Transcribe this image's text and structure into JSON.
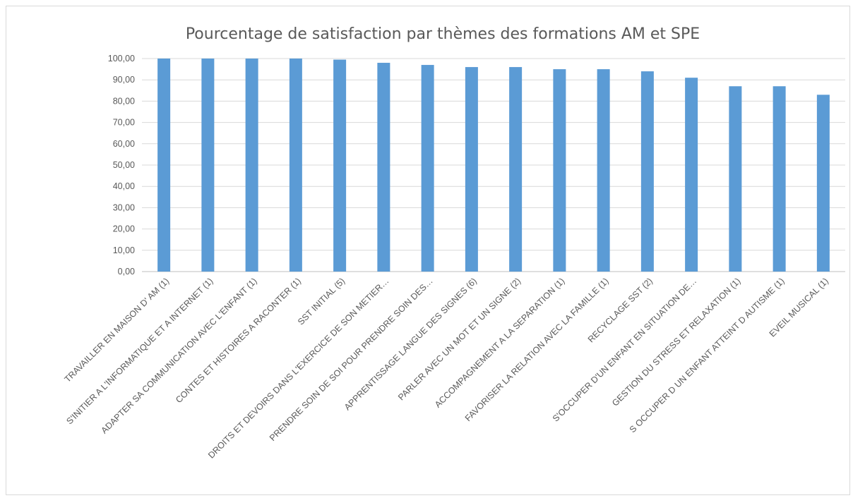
{
  "chart_data": {
    "type": "bar",
    "title": "Pourcentage de satisfaction  par thèmes des formations AM et SPE",
    "xlabel": "",
    "ylabel": "",
    "ylim": [
      0,
      100
    ],
    "ytick_step": 10,
    "ytick_labels": [
      "0,00",
      "10,00",
      "20,00",
      "30,00",
      "40,00",
      "50,00",
      "60,00",
      "70,00",
      "80,00",
      "90,00",
      "100,00"
    ],
    "grid": true,
    "legend": "none",
    "bar_color": "#5b9bd5",
    "categories": [
      "TRAVAILLER EN MAISON D' AM (1)",
      "S'INITIER A L'INFORMATIQUE ET A INTERNET (1)",
      "ADAPTER SA COMMUNICATION AVEC L'ENFANT (1)",
      "CONTES ET HISTOIRES A RACONTER (1)",
      "SST INITIAL (5)",
      "DROITS ET DEVOIRS DANS L'EXERCICE DE SON METIER…",
      "PRENDRE SOIN DE SOI POUR PRENDRE SOIN DES…",
      "APPRENTISSAGE LANGUE DES SIGNES (6)",
      "PARLER AVEC UN MOT ET UN SIGNE (2)",
      "ACCOMPAGNEMENT A LA SEPARATION (1)",
      "FAVORISER LA RELATION AVEC LA FAMILLE (1)",
      "RECYCLAGE SST (2)",
      "S'OCCUPER D'UN ENFANT EN SITUATION DE…",
      "GESTION DU STRESS ET RELAXATION (1)",
      "S OCCUPER D UN ENFANT ATTEINT D AUTISME (1)",
      "EVEIL MUSICAL (1)"
    ],
    "values": [
      100,
      100,
      100,
      100,
      99.5,
      98,
      97,
      96,
      96,
      95,
      95,
      94,
      91,
      87,
      87,
      83
    ]
  }
}
